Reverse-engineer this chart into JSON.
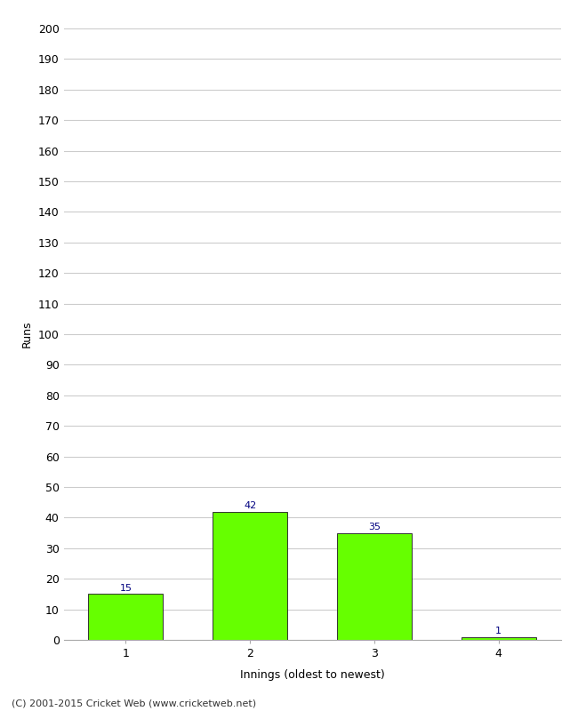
{
  "categories": [
    "1",
    "2",
    "3",
    "4"
  ],
  "values": [
    15,
    42,
    35,
    1
  ],
  "bar_color": "#66ff00",
  "bar_edge_color": "#333333",
  "value_label_color": "#000080",
  "title": "",
  "xlabel": "Innings (oldest to newest)",
  "ylabel": "Runs",
  "ylim": [
    0,
    200
  ],
  "yticks": [
    0,
    10,
    20,
    30,
    40,
    50,
    60,
    70,
    80,
    90,
    100,
    110,
    120,
    130,
    140,
    150,
    160,
    170,
    180,
    190,
    200
  ],
  "footer": "(C) 2001-2015 Cricket Web (www.cricketweb.net)",
  "background_color": "#ffffff",
  "grid_color": "#cccccc",
  "value_fontsize": 8,
  "axis_fontsize": 9,
  "label_fontsize": 9,
  "footer_fontsize": 8,
  "bar_width": 0.6,
  "bar_positions": [
    0,
    1,
    2,
    3
  ]
}
